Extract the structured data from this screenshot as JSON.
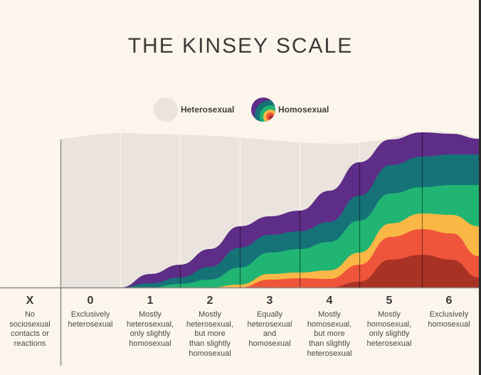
{
  "title": "THE KINSEY SCALE",
  "legend": [
    {
      "label": "Heterosexual",
      "color": "#ebe4de"
    },
    {
      "label": "Homosexual",
      "colors": [
        "#5e2d87",
        "#157378",
        "#20b573",
        "#fbb745",
        "#ee553a",
        "#a83224"
      ]
    }
  ],
  "columns": [
    {
      "num": "X",
      "desc": [
        "No",
        "sociosexual",
        "contacts or",
        "reactions"
      ]
    },
    {
      "num": "0",
      "desc": [
        "Exclusively",
        "heterosexual"
      ]
    },
    {
      "num": "1",
      "desc": [
        "Mostly",
        "heterosexual,",
        "only slightly",
        "homosexual"
      ]
    },
    {
      "num": "2",
      "desc": [
        "Mostly",
        "heterosexual,",
        "but more",
        "than slightly",
        "homosexual"
      ]
    },
    {
      "num": "3",
      "desc": [
        "Equally",
        "heterosexual",
        "and",
        "homosexual"
      ]
    },
    {
      "num": "4",
      "desc": [
        "Mostly",
        "homosexual,",
        "but more",
        "than slightly",
        "heterosexual"
      ]
    },
    {
      "num": "5",
      "desc": [
        "Mostly",
        "homosexual,",
        "only slightly",
        "heterosexual"
      ]
    },
    {
      "num": "6",
      "desc": [
        "Exclusively",
        "homosexual"
      ]
    }
  ],
  "chart_data": {
    "type": "area",
    "title": "THE KINSEY SCALE",
    "categories": [
      "0",
      "1",
      "2",
      "3",
      "4",
      "5",
      "6"
    ],
    "xlabel": "",
    "ylabel": "",
    "description": "Stacked streamgraph: heterosexual (background) vs homosexual (rainbow bands) proportion rising across scale 0 to 6",
    "series": [
      {
        "name": "Heterosexual",
        "color": "#ebe4de",
        "values": [
          1.0,
          0.95,
          0.89,
          0.64,
          0.5,
          0.25,
          0.0
        ]
      },
      {
        "name": "Homosexual",
        "color": "#5e2d87",
        "values": [
          0.0,
          0.05,
          0.11,
          0.36,
          0.5,
          0.75,
          1.0
        ]
      }
    ],
    "bands": [
      "#5e2d87",
      "#157378",
      "#20b573",
      "#fbb745",
      "#ee553a",
      "#a83224"
    ],
    "ylim": [
      0,
      1
    ],
    "grid": true
  }
}
